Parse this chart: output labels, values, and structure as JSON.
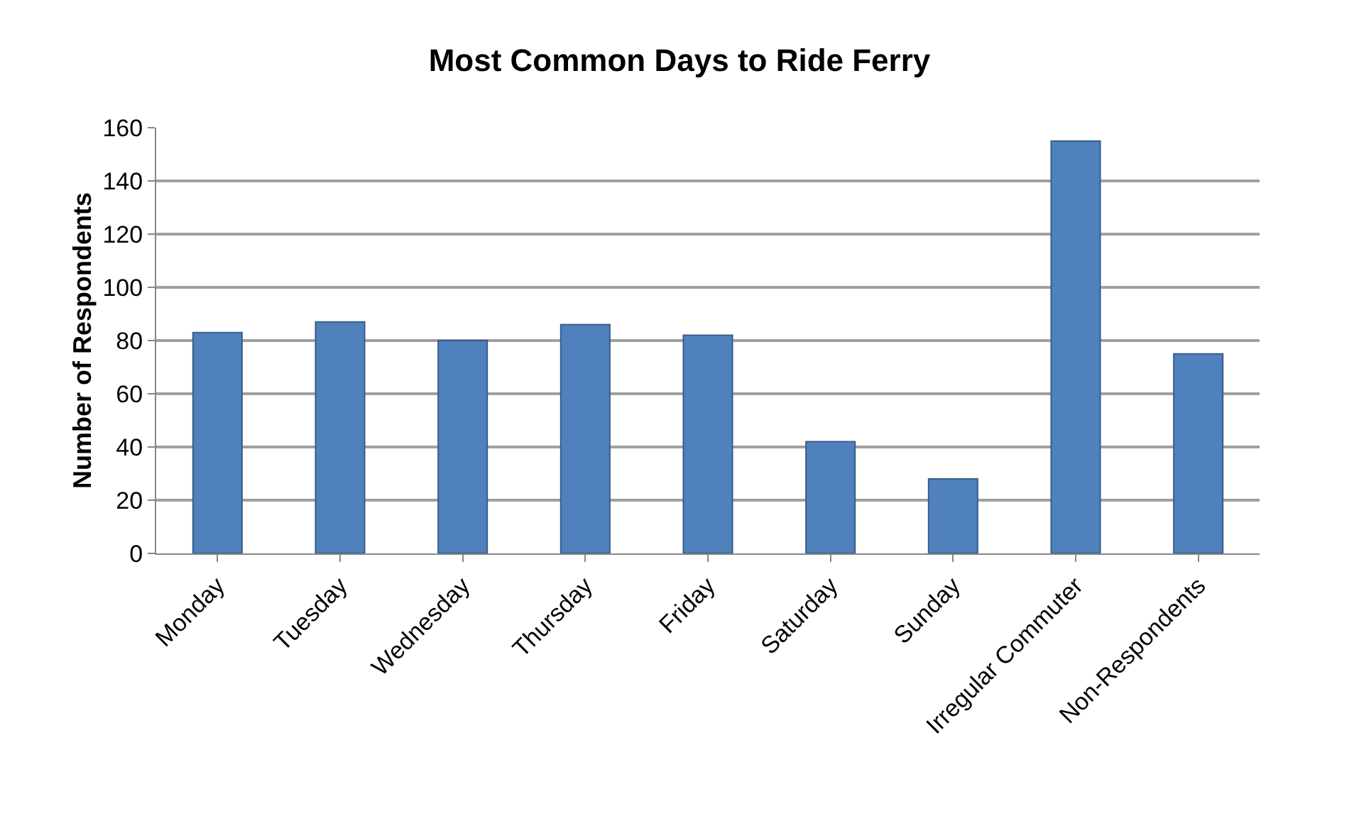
{
  "chart_data": {
    "type": "bar",
    "title": "Most Common Days to Ride Ferry",
    "ylabel": "Number of Respondents",
    "categories": [
      "Monday",
      "Tuesday",
      "Wednesday",
      "Thursday",
      "Friday",
      "Saturday",
      "Sunday",
      "Irregular Commuter",
      "Non-Respondents"
    ],
    "values": [
      83,
      87,
      80,
      86,
      82,
      42,
      28,
      155,
      75
    ],
    "color": "#4f81bd",
    "ylim": [
      0,
      160
    ],
    "yticks": [
      0,
      20,
      40,
      60,
      80,
      100,
      120,
      140,
      160
    ],
    "grid": "y"
  }
}
